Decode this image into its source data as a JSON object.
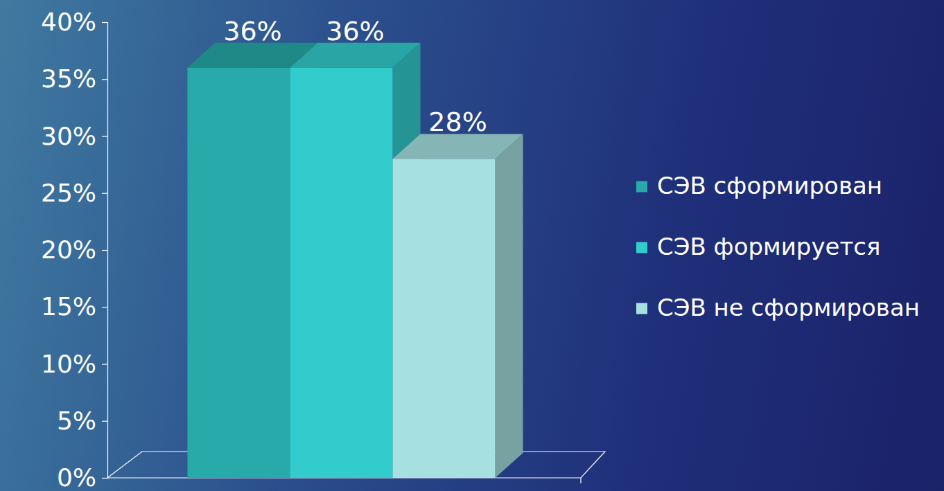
{
  "chart_data": {
    "type": "bar",
    "categories": [
      null
    ],
    "series": [
      {
        "name": "СЭВ сформирован",
        "color": "#27aaa9",
        "values": [
          36
        ],
        "value_labels": [
          "36%"
        ]
      },
      {
        "name": "СЭВ формируется",
        "color": "#33cccc",
        "values": [
          36
        ],
        "value_labels": [
          "36%"
        ]
      },
      {
        "name": "СЭВ не сформирован",
        "color": "#a6e0e0",
        "values": [
          28
        ],
        "value_labels": [
          "28%"
        ]
      }
    ],
    "ylim": [
      0,
      40
    ],
    "yticks": [
      {
        "value": 0,
        "label": "0%"
      },
      {
        "value": 5,
        "label": "5%"
      },
      {
        "value": 10,
        "label": "10%"
      },
      {
        "value": 15,
        "label": "15%"
      },
      {
        "value": 20,
        "label": "20%"
      },
      {
        "value": 25,
        "label": "25%"
      },
      {
        "value": 30,
        "label": "30%"
      },
      {
        "value": 35,
        "label": "35%"
      },
      {
        "value": 40,
        "label": "40%"
      }
    ],
    "grid": false,
    "legend": "right",
    "data_labels": true
  }
}
